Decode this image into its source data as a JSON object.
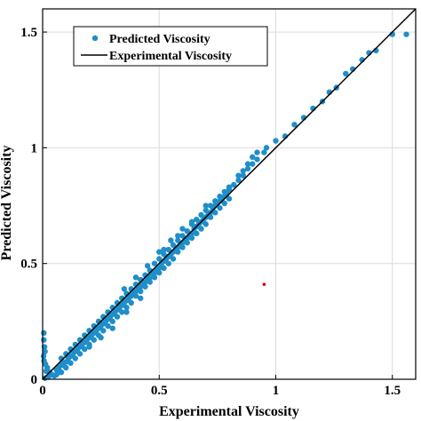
{
  "chart_data": {
    "type": "scatter",
    "title": "",
    "xlabel": "Experimental Viscosity",
    "ylabel": "Predicted Viscosity",
    "xlim": [
      0,
      1.6
    ],
    "ylim": [
      0,
      1.6
    ],
    "xticks": [
      "0",
      "0.5",
      "1",
      "1.5"
    ],
    "yticks": [
      "0",
      "0.5",
      "1",
      "1.5"
    ],
    "grid": true,
    "legend_position": "top-left",
    "series": [
      {
        "name": "Predicted Viscosity",
        "kind": "scatter",
        "color": "#1f8ec9",
        "points": [
          [
            0.005,
            0.2
          ],
          [
            0.005,
            0.17
          ],
          [
            0.008,
            0.14
          ],
          [
            0.01,
            0.12
          ],
          [
            0.004,
            0.1
          ],
          [
            0.006,
            0.08
          ],
          [
            0.012,
            0.065
          ],
          [
            0.02,
            0.05
          ],
          [
            0.015,
            0.035
          ],
          [
            0.03,
            0.03
          ],
          [
            0.04,
            0.02
          ],
          [
            0.05,
            0.015
          ],
          [
            0.025,
            0.01
          ],
          [
            0.01,
            0.005
          ],
          [
            0.06,
            0.04
          ],
          [
            0.07,
            0.05
          ],
          [
            0.08,
            0.06
          ],
          [
            0.09,
            0.07
          ],
          [
            0.1,
            0.075
          ],
          [
            0.11,
            0.09
          ],
          [
            0.12,
            0.1
          ],
          [
            0.13,
            0.11
          ],
          [
            0.14,
            0.12
          ],
          [
            0.15,
            0.13
          ],
          [
            0.16,
            0.14
          ],
          [
            0.17,
            0.15
          ],
          [
            0.18,
            0.16
          ],
          [
            0.19,
            0.17
          ],
          [
            0.2,
            0.18
          ],
          [
            0.21,
            0.19
          ],
          [
            0.22,
            0.2
          ],
          [
            0.23,
            0.21
          ],
          [
            0.24,
            0.22
          ],
          [
            0.25,
            0.23
          ],
          [
            0.26,
            0.24
          ],
          [
            0.27,
            0.25
          ],
          [
            0.28,
            0.26
          ],
          [
            0.29,
            0.27
          ],
          [
            0.3,
            0.28
          ],
          [
            0.31,
            0.29
          ],
          [
            0.32,
            0.3
          ],
          [
            0.33,
            0.31
          ],
          [
            0.34,
            0.32
          ],
          [
            0.35,
            0.33
          ],
          [
            0.36,
            0.34
          ],
          [
            0.37,
            0.35
          ],
          [
            0.38,
            0.36
          ],
          [
            0.39,
            0.37
          ],
          [
            0.4,
            0.38
          ],
          [
            0.41,
            0.39
          ],
          [
            0.42,
            0.4
          ],
          [
            0.43,
            0.41
          ],
          [
            0.44,
            0.42
          ],
          [
            0.45,
            0.43
          ],
          [
            0.46,
            0.44
          ],
          [
            0.47,
            0.45
          ],
          [
            0.48,
            0.46
          ],
          [
            0.49,
            0.47
          ],
          [
            0.5,
            0.48
          ],
          [
            0.51,
            0.5
          ],
          [
            0.52,
            0.51
          ],
          [
            0.53,
            0.52
          ],
          [
            0.54,
            0.53
          ],
          [
            0.55,
            0.54
          ],
          [
            0.56,
            0.55
          ],
          [
            0.57,
            0.56
          ],
          [
            0.58,
            0.57
          ],
          [
            0.59,
            0.58
          ],
          [
            0.6,
            0.59
          ],
          [
            0.61,
            0.6
          ],
          [
            0.62,
            0.61
          ],
          [
            0.63,
            0.62
          ],
          [
            0.64,
            0.63
          ],
          [
            0.65,
            0.65
          ],
          [
            0.66,
            0.66
          ],
          [
            0.67,
            0.67
          ],
          [
            0.68,
            0.68
          ],
          [
            0.69,
            0.69
          ],
          [
            0.7,
            0.7
          ],
          [
            0.71,
            0.71
          ],
          [
            0.72,
            0.72
          ],
          [
            0.73,
            0.74
          ],
          [
            0.74,
            0.75
          ],
          [
            0.75,
            0.76
          ],
          [
            0.76,
            0.77
          ],
          [
            0.77,
            0.78
          ],
          [
            0.78,
            0.79
          ],
          [
            0.79,
            0.8
          ],
          [
            0.8,
            0.82
          ],
          [
            0.82,
            0.84
          ],
          [
            0.84,
            0.86
          ],
          [
            0.86,
            0.88
          ],
          [
            0.88,
            0.91
          ],
          [
            0.9,
            0.93
          ],
          [
            0.92,
            0.95
          ],
          [
            0.95,
            0.98
          ],
          [
            1.0,
            1.03
          ],
          [
            1.04,
            1.05
          ],
          [
            1.08,
            1.1
          ],
          [
            1.12,
            1.13
          ],
          [
            1.16,
            1.17
          ],
          [
            1.2,
            1.2
          ],
          [
            1.23,
            1.24
          ],
          [
            1.26,
            1.26
          ],
          [
            1.3,
            1.32
          ],
          [
            1.33,
            1.34
          ],
          [
            1.37,
            1.38
          ],
          [
            1.4,
            1.41
          ],
          [
            1.43,
            1.42
          ],
          [
            1.5,
            1.49
          ],
          [
            1.56,
            1.49
          ],
          [
            0.06,
            0.02
          ],
          [
            0.08,
            0.03
          ],
          [
            0.1,
            0.05
          ],
          [
            0.12,
            0.07
          ],
          [
            0.14,
            0.09
          ],
          [
            0.16,
            0.11
          ],
          [
            0.18,
            0.13
          ],
          [
            0.2,
            0.15
          ],
          [
            0.22,
            0.17
          ],
          [
            0.24,
            0.19
          ],
          [
            0.26,
            0.21
          ],
          [
            0.28,
            0.23
          ],
          [
            0.3,
            0.25
          ],
          [
            0.32,
            0.27
          ],
          [
            0.34,
            0.29
          ],
          [
            0.36,
            0.31
          ],
          [
            0.38,
            0.33
          ],
          [
            0.4,
            0.36
          ],
          [
            0.42,
            0.38
          ],
          [
            0.44,
            0.4
          ],
          [
            0.46,
            0.42
          ],
          [
            0.48,
            0.44
          ],
          [
            0.5,
            0.46
          ],
          [
            0.52,
            0.48
          ],
          [
            0.54,
            0.5
          ],
          [
            0.56,
            0.52
          ],
          [
            0.58,
            0.55
          ],
          [
            0.6,
            0.57
          ],
          [
            0.62,
            0.59
          ],
          [
            0.64,
            0.61
          ],
          [
            0.66,
            0.63
          ],
          [
            0.68,
            0.65
          ],
          [
            0.7,
            0.67
          ],
          [
            0.72,
            0.7
          ],
          [
            0.74,
            0.72
          ],
          [
            0.76,
            0.74
          ],
          [
            0.78,
            0.76
          ],
          [
            0.8,
            0.78
          ],
          [
            0.08,
            0.09
          ],
          [
            0.1,
            0.11
          ],
          [
            0.12,
            0.13
          ],
          [
            0.14,
            0.15
          ],
          [
            0.16,
            0.17
          ],
          [
            0.18,
            0.19
          ],
          [
            0.2,
            0.21
          ],
          [
            0.22,
            0.23
          ],
          [
            0.24,
            0.25
          ],
          [
            0.26,
            0.27
          ],
          [
            0.28,
            0.29
          ],
          [
            0.3,
            0.31
          ],
          [
            0.32,
            0.33
          ],
          [
            0.34,
            0.35
          ],
          [
            0.36,
            0.37
          ],
          [
            0.38,
            0.39
          ],
          [
            0.4,
            0.41
          ],
          [
            0.42,
            0.43
          ],
          [
            0.44,
            0.45
          ],
          [
            0.46,
            0.47
          ],
          [
            0.48,
            0.5
          ],
          [
            0.5,
            0.52
          ],
          [
            0.52,
            0.54
          ],
          [
            0.54,
            0.56
          ],
          [
            0.56,
            0.58
          ],
          [
            0.58,
            0.6
          ],
          [
            0.6,
            0.62
          ],
          [
            0.62,
            0.64
          ],
          [
            0.64,
            0.67
          ],
          [
            0.66,
            0.69
          ],
          [
            0.68,
            0.71
          ],
          [
            0.7,
            0.73
          ],
          [
            0.72,
            0.75
          ],
          [
            0.74,
            0.77
          ],
          [
            0.76,
            0.79
          ],
          [
            0.78,
            0.81
          ],
          [
            0.8,
            0.83
          ],
          [
            0.84,
            0.88
          ],
          [
            0.86,
            0.9
          ],
          [
            0.88,
            0.93
          ],
          [
            0.9,
            0.96
          ],
          [
            0.92,
            0.98
          ],
          [
            0.96,
            1.0
          ],
          [
            0.5,
            0.55
          ],
          [
            0.52,
            0.56
          ],
          [
            0.58,
            0.62
          ],
          [
            0.64,
            0.68
          ],
          [
            0.7,
            0.75
          ],
          [
            0.35,
            0.39
          ],
          [
            0.4,
            0.44
          ],
          [
            0.45,
            0.49
          ],
          [
            0.55,
            0.6
          ],
          [
            0.6,
            0.65
          ],
          [
            0.3,
            0.22
          ],
          [
            0.36,
            0.29
          ],
          [
            0.42,
            0.35
          ],
          [
            0.25,
            0.18
          ],
          [
            0.2,
            0.14
          ]
        ]
      },
      {
        "name": "Experimental Viscosity",
        "kind": "line",
        "color": "#000000",
        "points": [
          [
            0,
            0
          ],
          [
            1.6,
            1.6
          ]
        ]
      }
    ],
    "annotations": [
      {
        "kind": "point",
        "x": 0.95,
        "y": 0.41,
        "color": "#e00000"
      }
    ]
  }
}
